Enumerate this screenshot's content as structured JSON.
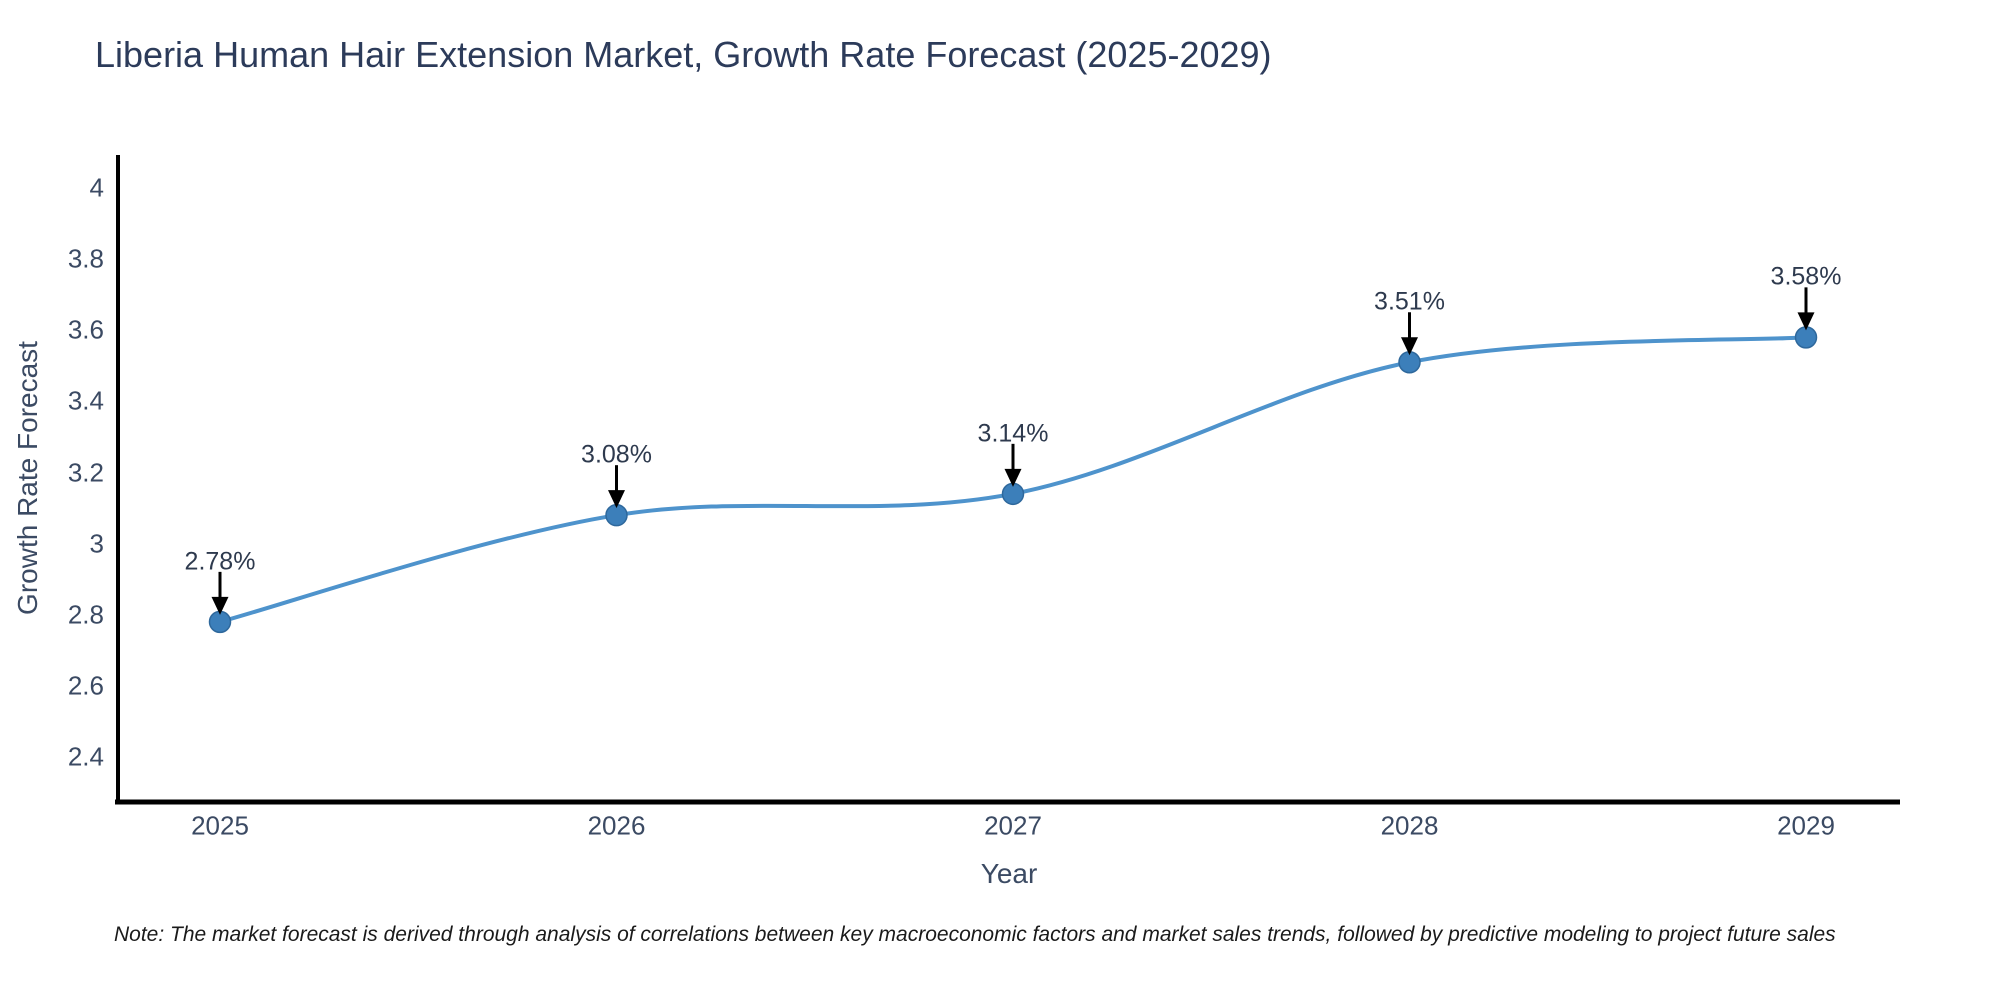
{
  "title": "Liberia Human Hair Extension Market, Growth Rate Forecast (2025-2029)",
  "note": "Note: The market forecast is derived through analysis of correlations between key macroeconomic factors and market sales trends, followed by predictive modeling to project future sales",
  "chart_data": {
    "type": "line",
    "title": "Liberia Human Hair Extension Market, Growth Rate Forecast (2025-2029)",
    "xlabel": "Year",
    "ylabel": "Growth Rate Forecast",
    "categories": [
      "2025",
      "2026",
      "2027",
      "2028",
      "2029"
    ],
    "series": [
      {
        "name": "Growth Rate Forecast",
        "values": [
          2.78,
          3.08,
          3.14,
          3.51,
          3.58
        ]
      }
    ],
    "data_labels": [
      "2.78%",
      "3.08%",
      "3.14%",
      "3.51%",
      "3.58%"
    ],
    "yticks": [
      4,
      3.8,
      3.6,
      3.4,
      3.2,
      3,
      2.8,
      2.6,
      2.4
    ],
    "ylim": [
      2.3,
      4.05
    ],
    "grid": false,
    "legend": "none",
    "curve": "spline",
    "line_color": "#4e93cc",
    "marker_color": "#3c7fba",
    "marker_edge_color": "#2e689c",
    "axis_color": "#000000",
    "annotation_arrow_color": "#000000"
  }
}
